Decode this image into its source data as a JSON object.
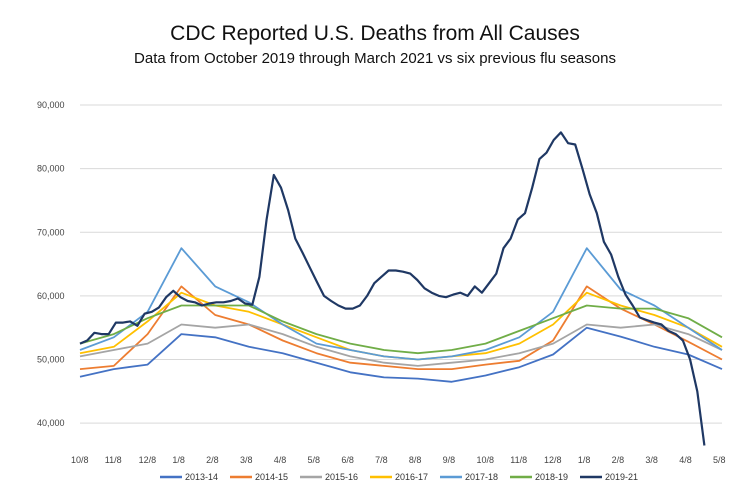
{
  "chart_data": {
    "type": "line",
    "title": "CDC Reported U.S. Deaths from All Causes",
    "subtitle": "Data from October 2019 through March 2021 vs six previous flu seasons",
    "xlabel": "",
    "ylabel": "",
    "ylim": [
      35000,
      90000
    ],
    "grid": true,
    "legend_position": "bottom",
    "x_ticks": [
      "10/8",
      "11/8",
      "12/8",
      "1/8",
      "2/8",
      "3/8",
      "4/8",
      "5/8",
      "6/8",
      "7/8",
      "8/8",
      "9/8",
      "10/8",
      "11/8",
      "12/8",
      "1/8",
      "2/8",
      "3/8",
      "4/8",
      "5/8"
    ],
    "y_ticks": [
      40000,
      50000,
      60000,
      70000,
      80000,
      90000
    ],
    "y_tick_labels": [
      "40,000",
      "50,000",
      "60,000",
      "70,000",
      "80,000",
      "90,000"
    ],
    "series": [
      {
        "name": "2013-14",
        "color": "#4472c4",
        "weekly": false,
        "values": [
          47300,
          48500,
          49200,
          54000,
          53500,
          52000,
          51000,
          49500,
          48000,
          47200,
          47000,
          46500,
          47500,
          48800,
          50800,
          55000,
          53600,
          52000,
          50800,
          48500
        ]
      },
      {
        "name": "2014-15",
        "color": "#ed7d31",
        "weekly": false,
        "values": [
          48500,
          49000,
          54000,
          61500,
          57000,
          55500,
          53000,
          51000,
          49500,
          49000,
          48500,
          48500,
          49200,
          49800,
          53000,
          61500,
          58000,
          55500,
          52800,
          50000
        ]
      },
      {
        "name": "2015-16",
        "color": "#a5a5a5",
        "weekly": false,
        "values": [
          50500,
          51500,
          52500,
          55500,
          55000,
          55500,
          54000,
          52000,
          50500,
          49500,
          49000,
          49500,
          50000,
          51000,
          52500,
          55500,
          55000,
          55500,
          54000,
          51500
        ]
      },
      {
        "name": "2016-17",
        "color": "#ffc000",
        "weekly": false,
        "values": [
          51000,
          52000,
          56000,
          60500,
          58500,
          57500,
          55500,
          53500,
          51500,
          50500,
          50000,
          50500,
          51000,
          52500,
          55500,
          60500,
          58500,
          57000,
          55000,
          52000
        ]
      },
      {
        "name": "2017-18",
        "color": "#5b9bd5",
        "weekly": false,
        "values": [
          51500,
          53500,
          57500,
          67500,
          61500,
          59000,
          55500,
          52500,
          51500,
          50500,
          50000,
          50500,
          51500,
          53500,
          57500,
          67500,
          61000,
          58500,
          55000,
          51500
        ]
      },
      {
        "name": "2018-19",
        "color": "#70ad47",
        "weekly": false,
        "values": [
          52500,
          54000,
          56500,
          58500,
          58500,
          58500,
          56000,
          54000,
          52500,
          51500,
          51000,
          51500,
          52500,
          54500,
          56500,
          58500,
          58000,
          58000,
          56500,
          53500
        ]
      },
      {
        "name": "2019-21",
        "color": "#1f3864",
        "weekly": true,
        "values": [
          52500,
          53000,
          54200,
          54000,
          54000,
          55800,
          55800,
          56000,
          55300,
          57200,
          57500,
          58200,
          59800,
          60800,
          59800,
          59200,
          59000,
          58500,
          58800,
          59000,
          59000,
          59200,
          59600,
          58800,
          58600,
          63000,
          72000,
          79000,
          77000,
          73500,
          69000,
          66800,
          64500,
          62200,
          60000,
          59200,
          58500,
          58000,
          58000,
          58500,
          60000,
          62000,
          63000,
          64000,
          64000,
          63800,
          63500,
          62500,
          61200,
          60500,
          60000,
          59800,
          60200,
          60500,
          60000,
          61500,
          60500,
          62000,
          63500,
          67500,
          69000,
          72000,
          73000,
          77000,
          81500,
          82500,
          84500,
          85700,
          84000,
          83800,
          80000,
          76000,
          73000,
          68500,
          66500,
          63000,
          60200,
          58500,
          56600,
          56200,
          55800,
          55500,
          54500,
          54000,
          53000,
          50000,
          45000,
          36500
        ]
      }
    ]
  }
}
